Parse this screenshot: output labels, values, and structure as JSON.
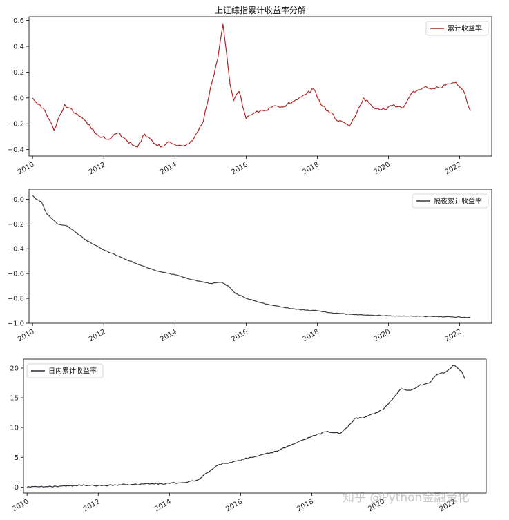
{
  "watermark": "知乎 @Python金融量化",
  "colors": {
    "series1": "#b22222",
    "series2": "#3a3a44",
    "series3": "#2a2a35",
    "axis": "#000000"
  },
  "chart_data": [
    {
      "type": "line",
      "title": "上证综指累计收益率分解",
      "xticks": [
        "2010",
        "2012",
        "2014",
        "2016",
        "2018",
        "2020",
        "2022"
      ],
      "xlim": [
        2009.9,
        2022.9
      ],
      "ylim": [
        -0.45,
        0.63
      ],
      "yticks": [
        "0.6",
        "0.4",
        "0.2",
        "0.0",
        "−0.2",
        "−0.4"
      ],
      "yticks_values": [
        0.6,
        0.4,
        0.2,
        0.0,
        -0.2,
        -0.4
      ],
      "legend": "top-right",
      "series": [
        {
          "name": "累计收益率",
          "color": "#b22222",
          "noise": 0.012,
          "x": [
            2010.0,
            2010.3,
            2010.6,
            2010.9,
            2011.2,
            2011.5,
            2011.8,
            2012.1,
            2012.4,
            2012.7,
            2012.95,
            2013.15,
            2013.4,
            2013.6,
            2013.8,
            2014.0,
            2014.2,
            2014.5,
            2014.8,
            2015.0,
            2015.2,
            2015.35,
            2015.45,
            2015.55,
            2015.65,
            2015.8,
            2016.0,
            2016.2,
            2016.5,
            2016.8,
            2017.0,
            2017.3,
            2017.6,
            2017.9,
            2018.1,
            2018.3,
            2018.6,
            2018.9,
            2019.1,
            2019.3,
            2019.6,
            2019.9,
            2020.1,
            2020.4,
            2020.7,
            2021.0,
            2021.3,
            2021.6,
            2021.9,
            2022.1,
            2022.3
          ],
          "y": [
            0.0,
            -0.08,
            -0.25,
            -0.05,
            -0.12,
            -0.18,
            -0.28,
            -0.32,
            -0.27,
            -0.35,
            -0.38,
            -0.28,
            -0.35,
            -0.38,
            -0.34,
            -0.36,
            -0.37,
            -0.33,
            -0.18,
            0.08,
            0.3,
            0.57,
            0.35,
            0.1,
            -0.02,
            0.05,
            -0.16,
            -0.12,
            -0.1,
            -0.06,
            -0.07,
            -0.03,
            0.02,
            0.07,
            -0.05,
            -0.1,
            -0.18,
            -0.22,
            -0.12,
            0.0,
            -0.08,
            -0.09,
            -0.06,
            -0.08,
            0.05,
            0.08,
            0.07,
            0.1,
            0.12,
            0.06,
            -0.1
          ]
        }
      ]
    },
    {
      "type": "line",
      "title": "",
      "xticks": [
        "2010",
        "2012",
        "2014",
        "2016",
        "2018",
        "2020",
        "2022"
      ],
      "xlim": [
        2009.9,
        2022.9
      ],
      "ylim": [
        -1.0,
        0.08
      ],
      "yticks": [
        "0.0",
        "−0.2",
        "−0.4",
        "−0.6",
        "−0.8",
        "−1.0"
      ],
      "yticks_values": [
        0.0,
        -0.2,
        -0.4,
        -0.6,
        -0.8,
        -1.0
      ],
      "legend": "top-right",
      "series": [
        {
          "name": "隔夜累计收益率",
          "color": "#3a3a44",
          "noise": 0.003,
          "x": [
            2010.0,
            2010.1,
            2010.25,
            2010.4,
            2010.7,
            2011.0,
            2011.5,
            2012.0,
            2012.5,
            2013.0,
            2013.5,
            2014.0,
            2014.5,
            2015.0,
            2015.3,
            2015.5,
            2015.7,
            2016.0,
            2016.5,
            2017.0,
            2017.5,
            2018.0,
            2018.5,
            2019.0,
            2019.5,
            2020.0,
            2020.5,
            2021.0,
            2021.5,
            2022.0,
            2022.3
          ],
          "y": [
            0.03,
            0.0,
            -0.02,
            -0.12,
            -0.2,
            -0.22,
            -0.33,
            -0.41,
            -0.47,
            -0.53,
            -0.58,
            -0.61,
            -0.65,
            -0.68,
            -0.67,
            -0.7,
            -0.76,
            -0.8,
            -0.84,
            -0.87,
            -0.89,
            -0.9,
            -0.92,
            -0.93,
            -0.935,
            -0.94,
            -0.943,
            -0.945,
            -0.948,
            -0.95,
            -0.953
          ]
        }
      ]
    },
    {
      "type": "line",
      "title": "",
      "xticks": [
        "2010",
        "2012",
        "2014",
        "2016",
        "2018",
        "2020",
        "2022"
      ],
      "xlim": [
        2009.9,
        2022.9
      ],
      "ylim": [
        -1,
        21.5
      ],
      "yticks": [
        "20",
        "15",
        "10",
        "5",
        "0"
      ],
      "yticks_values": [
        20,
        15,
        10,
        5,
        0
      ],
      "legend": "top-left",
      "series": [
        {
          "name": "日内累计收益率",
          "color": "#2a2a35",
          "noise": 0.12,
          "x": [
            2010.0,
            2010.5,
            2011.0,
            2011.5,
            2012.0,
            2012.5,
            2013.0,
            2013.5,
            2014.0,
            2014.5,
            2014.8,
            2015.0,
            2015.2,
            2015.4,
            2015.6,
            2015.9,
            2016.3,
            2016.7,
            2017.0,
            2017.3,
            2017.6,
            2018.0,
            2018.4,
            2018.8,
            2019.0,
            2019.2,
            2019.5,
            2019.8,
            2020.0,
            2020.3,
            2020.5,
            2020.8,
            2021.0,
            2021.3,
            2021.5,
            2021.8,
            2022.0,
            2022.2,
            2022.3
          ],
          "y": [
            0.0,
            0.05,
            0.2,
            0.3,
            0.25,
            0.35,
            0.45,
            0.55,
            0.6,
            0.8,
            1.2,
            2.2,
            3.0,
            3.8,
            4.0,
            4.4,
            5.0,
            5.6,
            6.0,
            6.8,
            7.5,
            8.5,
            9.3,
            9.0,
            10.0,
            11.5,
            11.8,
            12.5,
            13.0,
            15.0,
            16.5,
            16.3,
            17.0,
            17.5,
            18.8,
            19.5,
            20.5,
            19.5,
            18.2
          ]
        }
      ]
    }
  ]
}
